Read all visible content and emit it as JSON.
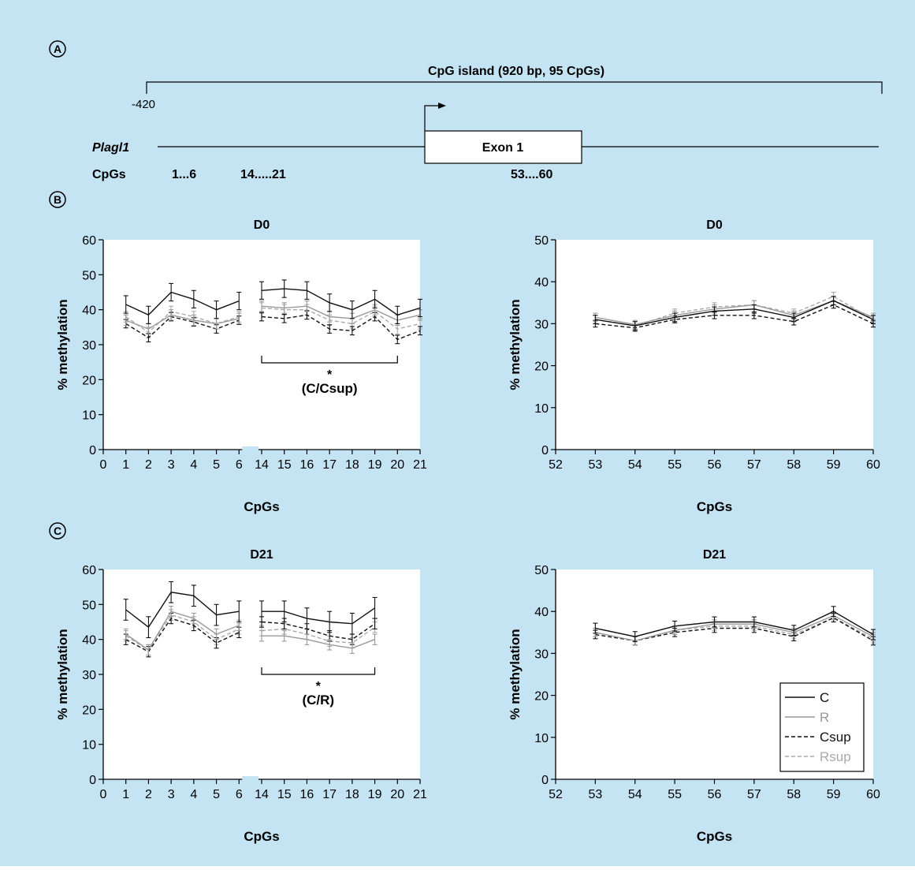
{
  "colors": {
    "background": "#c4e4f4",
    "plot_bg": "#ffffff",
    "C": "#111111",
    "R": "#999999",
    "Csup": "#111111",
    "Rsup": "#aaaaaa"
  },
  "panels": {
    "A": "A",
    "B": "B",
    "C": "C"
  },
  "gene_map": {
    "island_label": "CpG island (920 bp, 95 CpGs)",
    "start_label": "-420",
    "gene_name": "Plagl1",
    "exon_label": "Exon 1",
    "cpgs_label": "CpGs",
    "cpg_ranges": [
      "1...6",
      "14.....21",
      "53....60"
    ]
  },
  "chart_data": [
    {
      "type": "line",
      "panel": "B",
      "title": "D0",
      "xlabel": "CpGs",
      "ylabel": "% methylation",
      "ylim": [
        0,
        60
      ],
      "yticks": [
        0,
        10,
        20,
        30,
        40,
        50,
        60
      ],
      "xticks": [
        "0",
        "1",
        "2",
        "3",
        "4",
        "5",
        "6",
        "14",
        "15",
        "16",
        "17",
        "18",
        "19",
        "20",
        "21"
      ],
      "segments": [
        [
          "1",
          "2",
          "3",
          "4",
          "5",
          "6"
        ],
        [
          "14",
          "15",
          "16",
          "17",
          "18",
          "19",
          "20",
          "21"
        ]
      ],
      "annotation": {
        "star": "*",
        "label": "(C/Csup)",
        "from": "14",
        "to": "20"
      },
      "series": [
        {
          "name": "C",
          "style": "solid",
          "segment_values": [
            [
              41.5,
              38.5,
              45,
              43,
              40,
              42.5
            ],
            [
              45.5,
              46,
              45.5,
              42,
              40,
              43,
              38.5,
              40.5
            ]
          ],
          "err": 2.5
        },
        {
          "name": "R",
          "style": "solid",
          "segment_values": [
            [
              37,
              34.5,
              38.5,
              37,
              36,
              37.5
            ],
            [
              41,
              40.5,
              41,
              38,
              37.5,
              40,
              37,
              38.5
            ]
          ],
          "err": 1.5
        },
        {
          "name": "Csup",
          "style": "dashed",
          "segment_values": [
            [
              36,
              32,
              38,
              36.5,
              34.5,
              37
            ],
            [
              38,
              37.5,
              38.5,
              34.5,
              34,
              38,
              31.5,
              34
            ]
          ],
          "err": 1.2
        },
        {
          "name": "Rsup",
          "style": "dashed",
          "segment_values": [
            [
              38,
              33.5,
              39.5,
              38,
              36,
              38
            ],
            [
              40.5,
              40,
              40,
              37,
              36,
              39.5,
              34.5,
              36
            ]
          ],
          "err": 1.5
        }
      ]
    },
    {
      "type": "line",
      "panel": "B",
      "title": "D0",
      "xlabel": "CpGs",
      "ylabel": "% methylation",
      "ylim": [
        0,
        50
      ],
      "yticks": [
        0,
        10,
        20,
        30,
        40,
        50
      ],
      "xticks": [
        "52",
        "53",
        "54",
        "55",
        "56",
        "57",
        "58",
        "59",
        "60"
      ],
      "segments": [
        [
          "53",
          "54",
          "55",
          "56",
          "57",
          "58",
          "59",
          "60"
        ]
      ],
      "series": [
        {
          "name": "C",
          "style": "solid",
          "segment_values": [
            [
              31,
              29.5,
              31.5,
              33,
              33.5,
              31.5,
              35.5,
              31
            ]
          ],
          "err": 1.0
        },
        {
          "name": "R",
          "style": "solid",
          "segment_values": [
            [
              31.5,
              29.8,
              32,
              33.5,
              34.5,
              32,
              35.5,
              31.5
            ]
          ],
          "err": 1.0
        },
        {
          "name": "Csup",
          "style": "dashed",
          "segment_values": [
            [
              30,
              29,
              31,
              32,
              32,
              30.5,
              34.5,
              30
            ]
          ],
          "err": 0.8
        },
        {
          "name": "Rsup",
          "style": "dashed",
          "segment_values": [
            [
              31,
              29.5,
              32.5,
              34,
              34.5,
              32.5,
              36.5,
              31
            ]
          ],
          "err": 1.0
        }
      ]
    },
    {
      "type": "line",
      "panel": "C",
      "title": "D21",
      "xlabel": "CpGs",
      "ylabel": "% methylation",
      "ylim": [
        0,
        60
      ],
      "yticks": [
        0,
        10,
        20,
        30,
        40,
        50,
        60
      ],
      "xticks": [
        "0",
        "1",
        "2",
        "3",
        "4",
        "5",
        "6",
        "14",
        "15",
        "16",
        "17",
        "18",
        "19",
        "20",
        "21"
      ],
      "segments": [
        [
          "1",
          "2",
          "3",
          "4",
          "5",
          "6"
        ],
        [
          "14",
          "15",
          "16",
          "17",
          "18",
          "19"
        ]
      ],
      "annotation": {
        "star": "*",
        "label": "(C/R)",
        "from": "14",
        "to": "19"
      },
      "series": [
        {
          "name": "C",
          "style": "solid",
          "segment_values": [
            [
              48.5,
              43.5,
              53.5,
              52.5,
              47,
              48
            ],
            [
              48,
              48,
              46,
              45,
              44.5,
              49
            ]
          ],
          "err": 3.0
        },
        {
          "name": "R",
          "style": "solid",
          "segment_values": [
            [
              41.5,
              37,
              48,
              46,
              41.5,
              44
            ],
            [
              41,
              41,
              40,
              38.5,
              37.5,
              40
            ]
          ],
          "err": 1.5
        },
        {
          "name": "Csup",
          "style": "dashed",
          "segment_values": [
            [
              40,
              36.5,
              46,
              44,
              39,
              42
            ],
            [
              45,
              44.5,
              43,
              41,
              40,
              44.5
            ]
          ],
          "err": 1.5
        },
        {
          "name": "Rsup",
          "style": "dashed",
          "segment_values": [
            [
              41,
              37,
              47,
              45,
              40,
              43
            ],
            [
              42.5,
              43,
              41.5,
              39.5,
              39,
              43.5
            ]
          ],
          "err": 1.5
        }
      ]
    },
    {
      "type": "line",
      "panel": "C",
      "title": "D21",
      "xlabel": "CpGs",
      "ylabel": "% methylation",
      "ylim": [
        0,
        50
      ],
      "yticks": [
        0,
        10,
        20,
        30,
        40,
        50
      ],
      "xticks": [
        "52",
        "53",
        "54",
        "55",
        "56",
        "57",
        "58",
        "59",
        "60"
      ],
      "segments": [
        [
          "53",
          "54",
          "55",
          "56",
          "57",
          "58",
          "59",
          "60"
        ]
      ],
      "legend": {
        "placement": "bottom-right",
        "entries": [
          "C",
          "R",
          "Csup",
          "Rsup"
        ]
      },
      "series": [
        {
          "name": "C",
          "style": "solid",
          "segment_values": [
            [
              36,
              34,
              36.5,
              37.5,
              37.5,
              35.5,
              40,
              34.5
            ]
          ],
          "err": 1.2
        },
        {
          "name": "R",
          "style": "solid",
          "segment_values": [
            [
              35,
              33,
              35.5,
              37,
              37,
              35,
              39,
              34
            ]
          ],
          "err": 1.0
        },
        {
          "name": "Csup",
          "style": "dashed",
          "segment_values": [
            [
              34.5,
              33,
              35,
              36,
              36,
              34,
              38.5,
              33
            ]
          ],
          "err": 1.0
        },
        {
          "name": "Rsup",
          "style": "dashed",
          "segment_values": [
            [
              35,
              33,
              35.5,
              36.5,
              36.5,
              34.5,
              38.5,
              33.5
            ]
          ],
          "err": 1.0
        }
      ]
    }
  ]
}
